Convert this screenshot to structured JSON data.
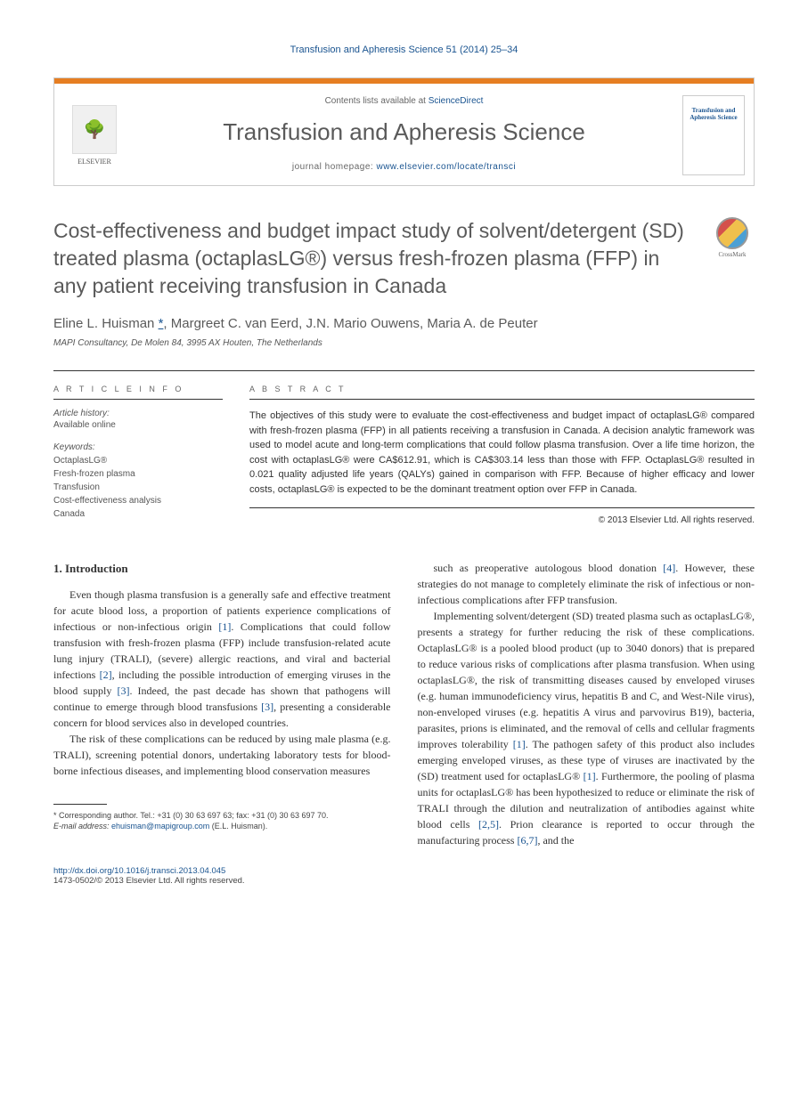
{
  "citation": "Transfusion and Apheresis Science 51 (2014) 25–34",
  "header": {
    "contents_prefix": "Contents lists available at ",
    "contents_link": "ScienceDirect",
    "journal_name": "Transfusion and Apheresis Science",
    "homepage_prefix": "journal homepage: ",
    "homepage_url": "www.elsevier.com/locate/transci",
    "publisher": "ELSEVIER",
    "cover_title": "Transfusion and Apheresis Science"
  },
  "crossmark_label": "CrossMark",
  "title": "Cost-effectiveness and budget impact study of solvent/detergent (SD) treated plasma (octaplasLG®) versus fresh-frozen plasma (FFP) in any patient receiving transfusion in Canada",
  "authors": "Eline L. Huisman *, Margreet C. van Eerd, J.N. Mario Ouwens, Maria A. de Peuter",
  "affiliation": "MAPI Consultancy, De Molen 84, 3995 AX Houten, The Netherlands",
  "info": {
    "heading": "A R T I C L E   I N F O",
    "history_label": "Article history:",
    "history_value": "Available online",
    "keywords_label": "Keywords:",
    "keywords": [
      "OctaplasLG®",
      "Fresh-frozen plasma",
      "Transfusion",
      "Cost-effectiveness analysis",
      "Canada"
    ]
  },
  "abstract": {
    "heading": "A B S T R A C T",
    "text": "The objectives of this study were to evaluate the cost-effectiveness and budget impact of octaplasLG® compared with fresh-frozen plasma (FFP) in all patients receiving a transfusion in Canada. A decision analytic framework was used to model acute and long-term complications that could follow plasma transfusion. Over a life time horizon, the cost with octaplasLG® were CA$612.91, which is CA$303.14 less than those with FFP. OctaplasLG® resulted in 0.021 quality adjusted life years (QALYs) gained in comparison with FFP. Because of higher efficacy and lower costs, octaplasLG® is expected to be the dominant treatment option over FFP in Canada.",
    "copyright": "© 2013 Elsevier Ltd. All rights reserved."
  },
  "body": {
    "section_heading": "1. Introduction",
    "col1_p1": "Even though plasma transfusion is a generally safe and effective treatment for acute blood loss, a proportion of patients experience complications of infectious or non-infectious origin [1]. Complications that could follow transfusion with fresh-frozen plasma (FFP) include transfusion-related acute lung injury (TRALI), (severe) allergic reactions, and viral and bacterial infections [2], including the possible introduction of emerging viruses in the blood supply [3]. Indeed, the past decade has shown that pathogens will continue to emerge through blood transfusions [3], presenting a considerable concern for blood services also in developed countries.",
    "col1_p2": "The risk of these complications can be reduced by using male plasma (e.g. TRALI), screening potential donors, undertaking laboratory tests for blood-borne infectious diseases, and implementing blood conservation measures",
    "col2_p1": "such as preoperative autologous blood donation [4]. However, these strategies do not manage to completely eliminate the risk of infectious or non-infectious complications after FFP transfusion.",
    "col2_p2": "Implementing solvent/detergent (SD) treated plasma such as octaplasLG®, presents a strategy for further reducing the risk of these complications. OctaplasLG® is a pooled blood product (up to 3040 donors) that is prepared to reduce various risks of complications after plasma transfusion. When using octaplasLG®, the risk of transmitting diseases caused by enveloped viruses (e.g. human immunodeficiency virus, hepatitis B and C, and West-Nile virus), non-enveloped viruses (e.g. hepatitis A virus and parvovirus B19), bacteria, parasites, prions is eliminated, and the removal of cells and cellular fragments improves tolerability [1]. The pathogen safety of this product also includes emerging enveloped viruses, as these type of viruses are inactivated by the (SD) treatment used for octaplasLG® [1]. Furthermore, the pooling of plasma units for octaplasLG® has been hypothesized to reduce or eliminate the risk of TRALI through the dilution and neutralization of antibodies against white blood cells [2,5]. Prion clearance is reported to occur through the manufacturing process [6,7], and the"
  },
  "footnote": {
    "corr": "* Corresponding author. Tel.: +31 (0) 30 63 697 63; fax: +31 (0) 30 63 697 70.",
    "email_label": "E-mail address: ",
    "email": "ehuisman@mapigroup.com",
    "email_suffix": " (E.L. Huisman)."
  },
  "footer": {
    "doi": "http://dx.doi.org/10.1016/j.transci.2013.04.045",
    "issn_line": "1473-0502/© 2013 Elsevier Ltd. All rights reserved."
  }
}
